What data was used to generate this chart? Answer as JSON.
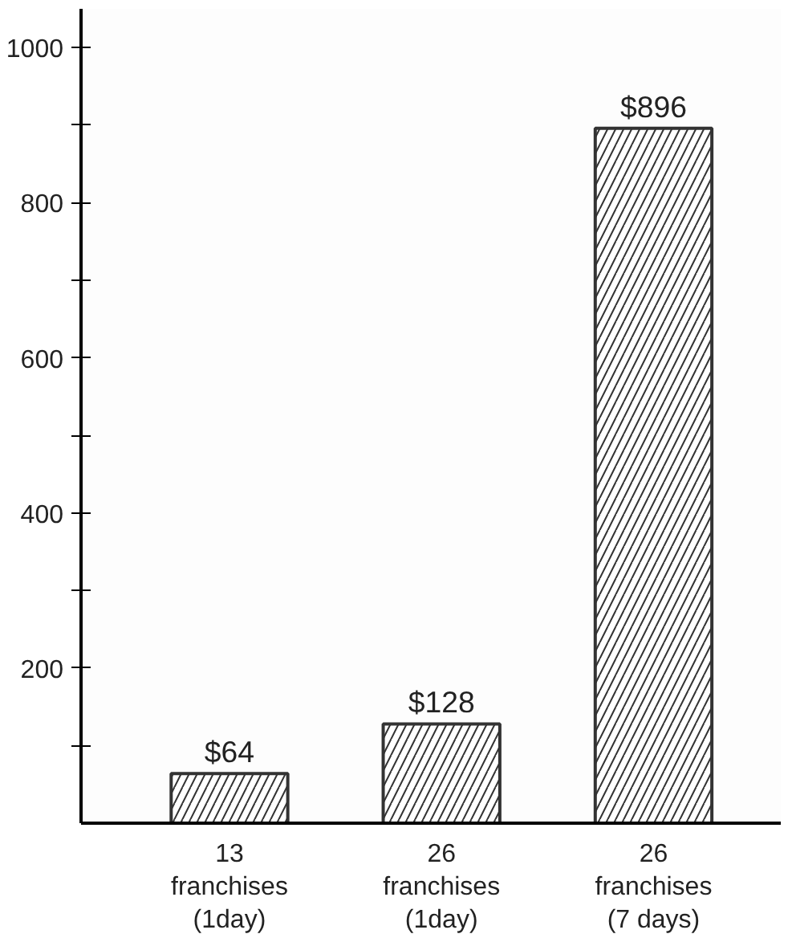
{
  "chart_data": {
    "type": "bar",
    "categories": [
      "13\nfranchises\n(1day)",
      "26\nfranchises\n(1day)",
      "26\nfranchises\n(7 days)"
    ],
    "values": [
      64,
      128,
      896
    ],
    "value_labels": [
      "$64",
      "$128",
      "$896"
    ],
    "color": "#333333",
    "ylim": [
      0,
      1050
    ],
    "yticks": [
      {
        "value": 100,
        "label": null
      },
      200,
      {
        "value": 300,
        "label": null
      },
      400,
      {
        "value": 500,
        "label": null
      },
      600,
      {
        "value": 700,
        "label": null
      },
      800,
      {
        "value": 900,
        "label": null
      },
      1000
    ],
    "grid": false
  }
}
